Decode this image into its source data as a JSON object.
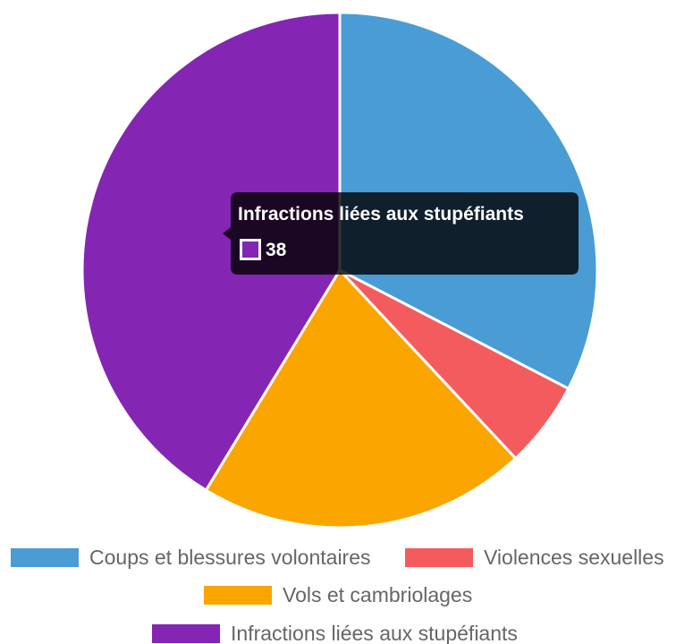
{
  "chart_data": {
    "type": "pie",
    "categories": [
      "Coups et blessures volontaires",
      "Violences sexuelles",
      "Vols et cambriolages",
      "Infractions liées aux stupéfiants"
    ],
    "values": [
      30,
      5,
      19,
      38
    ],
    "colors": [
      "#4a9cd4",
      "#f45b5f",
      "#fba500",
      "#8425b3"
    ],
    "legend_position": "bottom",
    "tooltip": {
      "title": "Infractions liées aux stupéfiants",
      "value": "38"
    }
  }
}
